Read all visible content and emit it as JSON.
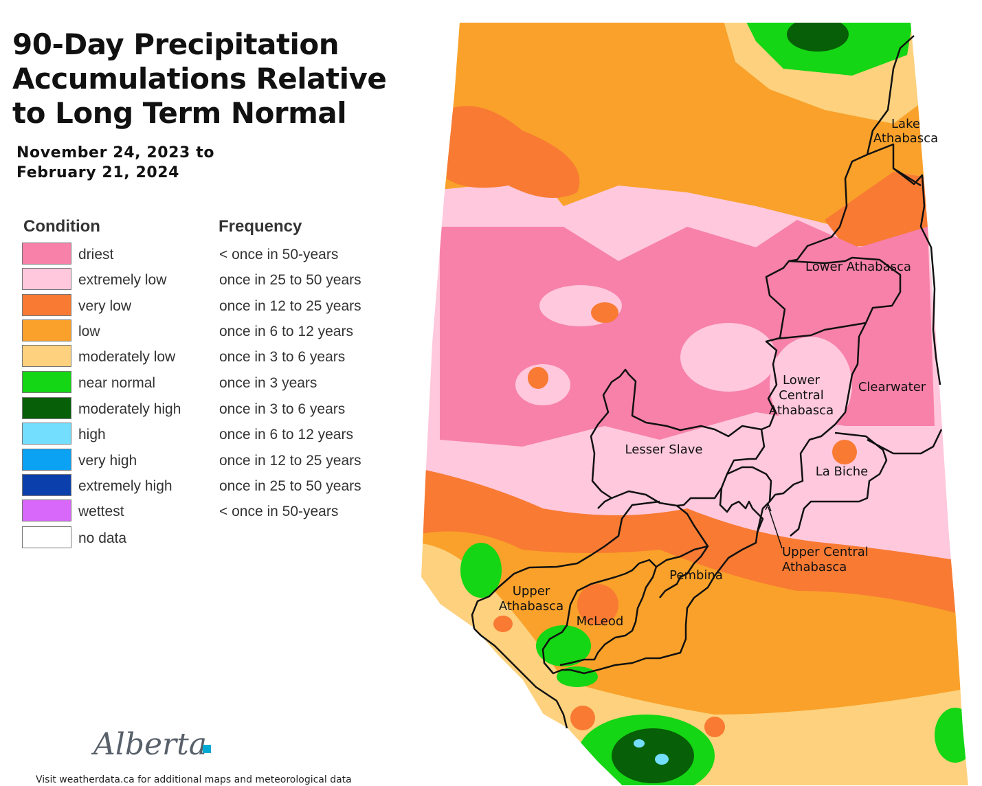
{
  "title": "90-Day Precipitation Accumulations Relative to Long Term Normal",
  "date_line1": "November 24, 2023 to",
  "date_line2": "February 21, 2024",
  "legend": {
    "condition_header": "Condition",
    "frequency_header": "Frequency",
    "items": [
      {
        "condition": "driest",
        "frequency": "< once in 50-years",
        "color": "#f781a9"
      },
      {
        "condition": "extremely low",
        "frequency": "once in 25 to 50 years",
        "color": "#ffc8dc"
      },
      {
        "condition": "very low",
        "frequency": "once in 12 to 25 years",
        "color": "#f87a33"
      },
      {
        "condition": "low",
        "frequency": "once in 6 to 12 years",
        "color": "#f9a12a"
      },
      {
        "condition": "moderately low",
        "frequency": "once in 3 to 6 years",
        "color": "#fdd17d"
      },
      {
        "condition": "near normal",
        "frequency": "once in 3 years",
        "color": "#14d614"
      },
      {
        "condition": "moderately high",
        "frequency": "once in 3 to 6 years",
        "color": "#075f07"
      },
      {
        "condition": "high",
        "frequency": "once in 6 to 12 years",
        "color": "#73defe"
      },
      {
        "condition": "very high",
        "frequency": "once in 12 to 25 years",
        "color": "#0ba2f4"
      },
      {
        "condition": "extremely high",
        "frequency": "once in 25 to 50 years",
        "color": "#0b40ac"
      },
      {
        "condition": "wettest",
        "frequency": "< once in 50-years",
        "color": "#d868fa"
      },
      {
        "condition": "no data",
        "frequency": "",
        "color": "#ffffff"
      }
    ]
  },
  "regions": {
    "lake_athabasca": [
      "Lake",
      "Athabasca"
    ],
    "lower_athabasca": "Lower Athabasca",
    "lower_central_athabasca": [
      "Lower",
      "Central",
      "Athabasca"
    ],
    "clearwater": "Clearwater",
    "lesser_slave": "Lesser Slave",
    "la_biche": "La Biche",
    "upper_central_athabasca": [
      "Upper Central",
      "Athabasca"
    ],
    "pembina": "Pembina",
    "upper_athabasca": [
      "Upper",
      "Athabasca"
    ],
    "mcleod": "McLeod"
  },
  "logo_text": "Alberta",
  "footer": "Visit weatherdata.ca for additional maps and meteorological data"
}
